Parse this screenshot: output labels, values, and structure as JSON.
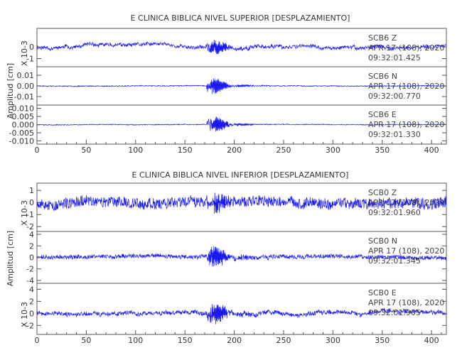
{
  "chart_data": [
    {
      "type": "line",
      "title": "E CLINICA BIBLICA NIVEL SUPERIOR [DESPLAZAMIENTO]",
      "ylabel": "Amplitud [cm]",
      "xlim": [
        0,
        415
      ],
      "x_ticks": [
        "0",
        "50",
        "100",
        "150",
        "200",
        "250",
        "300",
        "350",
        "400"
      ],
      "event_time": 175,
      "series": [
        {
          "name": "SCB6 Z",
          "axis_label": "X 10-3",
          "ylim": [
            -1.7,
            1.6
          ],
          "y_ticks": [
            "0",
            "-1"
          ],
          "y_tick_values": [
            0,
            -1
          ],
          "date": "APR 17 (108), 2020",
          "time": "09:32:01.425",
          "noise": 0.14,
          "wander": 0.45,
          "peak": 1.3,
          "seed": 11
        },
        {
          "name": "SCB6 N",
          "axis_label": "",
          "ylim": [
            -0.018,
            0.018
          ],
          "y_ticks": [
            "0.01",
            "0.00",
            "-0.01"
          ],
          "y_tick_values": [
            0.01,
            0.0,
            -0.01
          ],
          "date": "APR 17 (108), 2020",
          "time": "09:32:00.770",
          "noise": 0.0004,
          "wander": 0.0004,
          "peak": 0.016,
          "seed": 23
        },
        {
          "name": "SCB6 E",
          "axis_label": "",
          "ylim": [
            -0.012,
            0.012
          ],
          "y_ticks": [
            "0.010",
            "0.005",
            "0.000",
            "-0.005",
            "-0.010"
          ],
          "y_tick_values": [
            0.01,
            0.005,
            0.0,
            -0.005,
            -0.01
          ],
          "date": "APR 17 (108), 2020",
          "time": "09:32:01.330",
          "noise": 0.00025,
          "wander": 0.0003,
          "peak": 0.011,
          "seed": 37
        }
      ]
    },
    {
      "type": "line",
      "title": "E CLINICA BIBLICA NIVEL INFERIOR [DESPLAZAMIENTO]",
      "ylabel": "Amplitud [cm]",
      "xlim": [
        0,
        415
      ],
      "x_ticks": [
        "0",
        "50",
        "100",
        "150",
        "200",
        "250",
        "300",
        "350",
        "400"
      ],
      "event_time": 175,
      "series": [
        {
          "name": "SCB0 Z",
          "axis_label": "X 10-3",
          "ylim": [
            -2.4,
            1.6
          ],
          "y_ticks": [
            "1",
            "0",
            "-1",
            "-2"
          ],
          "y_tick_values": [
            1,
            0,
            -1,
            -2
          ],
          "date": "APR 17 (108), 2020",
          "time": "09:32:01.960",
          "noise": 0.45,
          "wander": 0.45,
          "peak": 1.6,
          "seed": 53
        },
        {
          "name": "SCB0 N",
          "axis_label": "",
          "ylim": [
            -4.5,
            4.5
          ],
          "y_ticks": [
            "4",
            "2",
            "0",
            "-2",
            "-4"
          ],
          "y_tick_values": [
            4,
            2,
            0,
            -2,
            -4
          ],
          "date": "APR 17 (108), 2020",
          "time": "09:32:01.345",
          "noise": 0.35,
          "wander": 0.5,
          "peak": 3.8,
          "seed": 71
        },
        {
          "name": "SCB0 E",
          "axis_label": "X 10-3",
          "ylim": [
            -3.5,
            5.0
          ],
          "y_ticks": [
            "4",
            "2",
            "0",
            "-2"
          ],
          "y_tick_values": [
            4,
            2,
            0,
            -2
          ],
          "date": "APR 17 (108), 2020",
          "time": "09:32:01.905",
          "noise": 0.35,
          "wander": 0.8,
          "peak": 3.5,
          "seed": 89
        }
      ]
    }
  ]
}
